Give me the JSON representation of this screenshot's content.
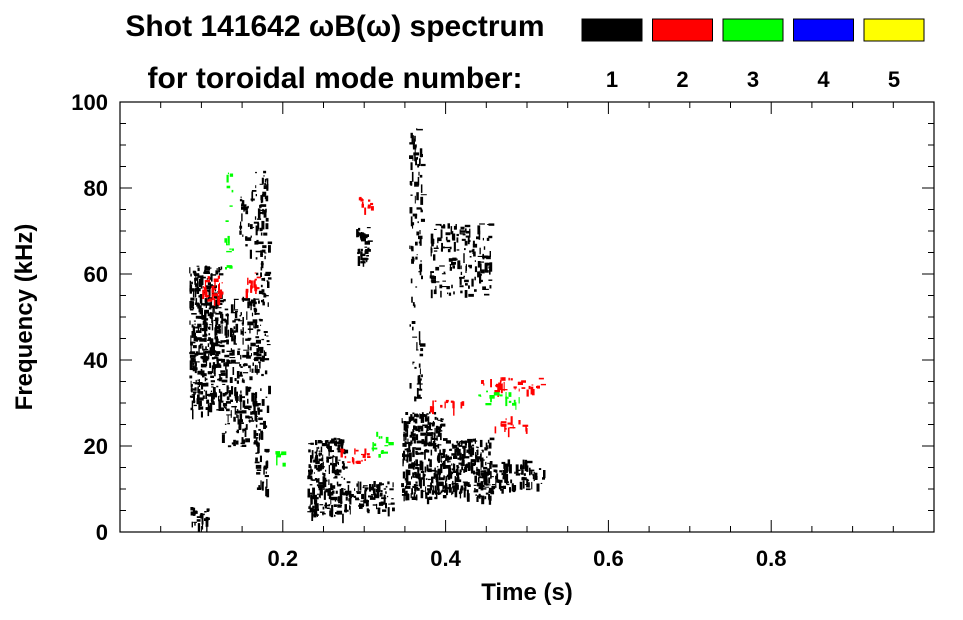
{
  "chart_data": {
    "type": "heatmap",
    "title_line1": "Shot 141642 ωB(ω) spectrum",
    "title_line2": "for toroidal mode number:",
    "xlabel": "Time (s)",
    "ylabel": "Frequency (kHz)",
    "xlim": [
      0.0,
      1.0
    ],
    "ylim": [
      0,
      100
    ],
    "x_ticks": [
      0.2,
      0.4,
      0.6,
      0.8
    ],
    "x_tick_labels": [
      "0.2",
      "0.4",
      "0.6",
      "0.8"
    ],
    "y_ticks": [
      0,
      20,
      40,
      60,
      80,
      100
    ],
    "y_tick_labels": [
      "0",
      "20",
      "40",
      "60",
      "80",
      "100"
    ],
    "legend": [
      {
        "label": "1",
        "color": "#000000"
      },
      {
        "label": "2",
        "color": "#ff0000"
      },
      {
        "label": "3",
        "color": "#00ff00"
      },
      {
        "label": "4",
        "color": "#0000ff"
      },
      {
        "label": "5",
        "color": "#ffff00"
      }
    ],
    "blobs": [
      {
        "mode": 1,
        "t0": 0.085,
        "t1": 0.125,
        "f0": 28,
        "f1": 62,
        "density": 0.8
      },
      {
        "mode": 1,
        "t0": 0.125,
        "t1": 0.17,
        "f0": 20,
        "f1": 55,
        "density": 0.45
      },
      {
        "mode": 1,
        "t0": 0.165,
        "t1": 0.182,
        "f0": 10,
        "f1": 85,
        "density": 0.3
      },
      {
        "mode": 1,
        "t0": 0.145,
        "t1": 0.175,
        "f0": 65,
        "f1": 80,
        "density": 0.3
      },
      {
        "mode": 1,
        "t0": 0.085,
        "t1": 0.11,
        "f0": 2,
        "f1": 6,
        "density": 0.7
      },
      {
        "mode": 1,
        "t0": 0.23,
        "t1": 0.275,
        "f0": 4,
        "f1": 22,
        "density": 0.75
      },
      {
        "mode": 1,
        "t0": 0.275,
        "t1": 0.335,
        "f0": 5,
        "f1": 12,
        "density": 0.6
      },
      {
        "mode": 1,
        "t0": 0.29,
        "t1": 0.305,
        "f0": 63,
        "f1": 71,
        "density": 0.85
      },
      {
        "mode": 1,
        "t0": 0.345,
        "t1": 0.395,
        "f0": 8,
        "f1": 28,
        "density": 0.8
      },
      {
        "mode": 1,
        "t0": 0.395,
        "t1": 0.455,
        "f0": 8,
        "f1": 22,
        "density": 0.8
      },
      {
        "mode": 1,
        "t0": 0.455,
        "t1": 0.5,
        "f0": 10,
        "f1": 17,
        "density": 0.65
      },
      {
        "mode": 1,
        "t0": 0.5,
        "t1": 0.52,
        "f0": 11,
        "f1": 15,
        "density": 0.55
      },
      {
        "mode": 1,
        "t0": 0.355,
        "t1": 0.37,
        "f0": 30,
        "f1": 95,
        "density": 0.3
      },
      {
        "mode": 1,
        "t0": 0.38,
        "t1": 0.455,
        "f0": 55,
        "f1": 72,
        "density": 0.35
      },
      {
        "mode": 2,
        "t0": 0.1,
        "t1": 0.125,
        "f0": 54,
        "f1": 60,
        "density": 0.55
      },
      {
        "mode": 2,
        "t0": 0.15,
        "t1": 0.168,
        "f0": 56,
        "f1": 61,
        "density": 0.5
      },
      {
        "mode": 2,
        "t0": 0.29,
        "t1": 0.31,
        "f0": 75,
        "f1": 78,
        "density": 0.6
      },
      {
        "mode": 2,
        "t0": 0.27,
        "t1": 0.31,
        "f0": 16,
        "f1": 20,
        "density": 0.35
      },
      {
        "mode": 2,
        "t0": 0.38,
        "t1": 0.42,
        "f0": 29,
        "f1": 31,
        "density": 0.45
      },
      {
        "mode": 2,
        "t0": 0.44,
        "t1": 0.52,
        "f0": 33,
        "f1": 36,
        "density": 0.4
      },
      {
        "mode": 2,
        "t0": 0.46,
        "t1": 0.5,
        "f0": 24,
        "f1": 27,
        "density": 0.4
      },
      {
        "mode": 3,
        "t0": 0.44,
        "t1": 0.49,
        "f0": 30,
        "f1": 33,
        "density": 0.35
      },
      {
        "mode": 3,
        "t0": 0.3,
        "t1": 0.33,
        "f0": 18,
        "f1": 24,
        "density": 0.2
      },
      {
        "mode": 3,
        "t0": 0.19,
        "t1": 0.2,
        "f0": 15,
        "f1": 20,
        "density": 0.3
      },
      {
        "mode": 3,
        "t0": 0.128,
        "t1": 0.138,
        "f0": 60,
        "f1": 86,
        "density": 0.2
      }
    ]
  }
}
